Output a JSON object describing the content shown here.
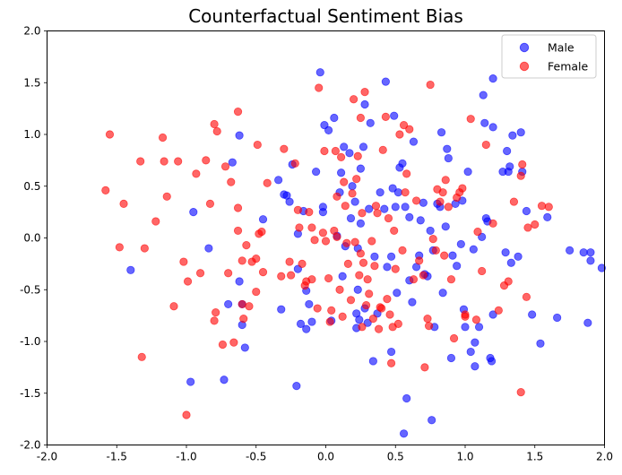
{
  "chart_data": {
    "type": "scatter",
    "title": "Counterfactual Sentiment Bias",
    "xlabel": "",
    "ylabel": "",
    "xlim": [
      -2.0,
      2.0
    ],
    "ylim": [
      -2.0,
      2.0
    ],
    "xticks": [
      "-2.0",
      "-1.5",
      "-1.0",
      "-0.5",
      "0.0",
      "0.5",
      "1.0",
      "1.5",
      "2.0"
    ],
    "yticks": [
      "-2.0",
      "-1.5",
      "-1.0",
      "-0.5",
      "0.0",
      "0.5",
      "1.0",
      "1.5",
      "2.0"
    ],
    "grid": false,
    "legend_position": "top-right",
    "series": [
      {
        "name": "Male",
        "color": "#0000ff",
        "alpha": 0.6,
        "points": [
          [
            -1.4,
            -0.31
          ],
          [
            -0.95,
            0.25
          ],
          [
            -0.97,
            -1.39
          ],
          [
            -0.84,
            -0.1
          ],
          [
            -0.73,
            -1.37
          ],
          [
            -0.7,
            -0.64
          ],
          [
            -0.67,
            0.73
          ],
          [
            -0.62,
            0.99
          ],
          [
            -0.62,
            -0.42
          ],
          [
            -0.6,
            -0.64
          ],
          [
            -0.6,
            -0.84
          ],
          [
            -0.58,
            -1.06
          ],
          [
            -0.45,
            0.18
          ],
          [
            -0.34,
            0.56
          ],
          [
            -0.32,
            -0.69
          ],
          [
            -0.3,
            0.42
          ],
          [
            -0.28,
            0.41
          ],
          [
            -0.26,
            0.35
          ],
          [
            -0.24,
            0.71
          ],
          [
            -0.21,
            -1.43
          ],
          [
            -0.2,
            -0.3
          ],
          [
            -0.2,
            0.04
          ],
          [
            -0.18,
            -0.83
          ],
          [
            -0.16,
            0.26
          ],
          [
            -0.14,
            -0.51
          ],
          [
            -0.14,
            -0.88
          ],
          [
            -0.12,
            -0.64
          ],
          [
            -0.1,
            -0.81
          ],
          [
            -0.07,
            0.64
          ],
          [
            -0.04,
            1.6
          ],
          [
            -0.02,
            0.3
          ],
          [
            -0.02,
            0.25
          ],
          [
            -0.01,
            1.09
          ],
          [
            0.02,
            1.04
          ],
          [
            0.04,
            -0.8
          ],
          [
            0.06,
            1.16
          ],
          [
            0.08,
            0.02
          ],
          [
            0.1,
            0.44
          ],
          [
            0.11,
            0.63
          ],
          [
            0.12,
            -0.37
          ],
          [
            0.13,
            0.88
          ],
          [
            0.14,
            -0.08
          ],
          [
            0.17,
            0.82
          ],
          [
            0.18,
            0.19
          ],
          [
            0.19,
            0.5
          ],
          [
            0.21,
            0.35
          ],
          [
            0.22,
            -0.73
          ],
          [
            0.22,
            -0.87
          ],
          [
            0.23,
            -0.5
          ],
          [
            0.23,
            -0.1
          ],
          [
            0.24,
            -0.79
          ],
          [
            0.25,
            0.67
          ],
          [
            0.25,
            0.14
          ],
          [
            0.27,
            0.88
          ],
          [
            0.28,
            -0.68
          ],
          [
            0.28,
            1.29
          ],
          [
            0.3,
            -0.82
          ],
          [
            0.31,
            0.28
          ],
          [
            0.32,
            1.11
          ],
          [
            0.34,
            -1.19
          ],
          [
            0.35,
            -0.18
          ],
          [
            0.37,
            -0.73
          ],
          [
            0.39,
            0.44
          ],
          [
            0.42,
            0.28
          ],
          [
            0.43,
            1.51
          ],
          [
            0.44,
            -0.28
          ],
          [
            0.47,
            -1.1
          ],
          [
            0.47,
            -0.18
          ],
          [
            0.48,
            0.48
          ],
          [
            0.49,
            1.18
          ],
          [
            0.5,
            0.3
          ],
          [
            0.51,
            -0.53
          ],
          [
            0.52,
            0.44
          ],
          [
            0.53,
            0.68
          ],
          [
            0.55,
            0.72
          ],
          [
            0.56,
            -1.89
          ],
          [
            0.57,
            0.3
          ],
          [
            0.58,
            -1.55
          ],
          [
            0.6,
            -0.41
          ],
          [
            0.6,
            0.2
          ],
          [
            0.62,
            -0.62
          ],
          [
            0.63,
            0.93
          ],
          [
            0.65,
            -0.28
          ],
          [
            0.67,
            -0.17
          ],
          [
            0.68,
            0.17
          ],
          [
            0.7,
            0.34
          ],
          [
            0.71,
            -0.35
          ],
          [
            0.73,
            -0.37
          ],
          [
            0.75,
            0.07
          ],
          [
            0.76,
            -1.76
          ],
          [
            0.77,
            -0.12
          ],
          [
            0.78,
            -0.86
          ],
          [
            0.8,
            0.33
          ],
          [
            0.82,
            0.3
          ],
          [
            0.83,
            1.02
          ],
          [
            0.84,
            -0.53
          ],
          [
            0.86,
            0.11
          ],
          [
            0.87,
            0.86
          ],
          [
            0.88,
            0.77
          ],
          [
            0.9,
            -1.16
          ],
          [
            0.91,
            -0.17
          ],
          [
            0.93,
            0.33
          ],
          [
            0.94,
            -0.27
          ],
          [
            0.97,
            -0.06
          ],
          [
            0.98,
            0.36
          ],
          [
            0.99,
            -0.69
          ],
          [
            1.0,
            -0.86
          ],
          [
            1.02,
            0.64
          ],
          [
            1.04,
            -1.1
          ],
          [
            1.06,
            -0.11
          ],
          [
            1.07,
            -1.24
          ],
          [
            1.07,
            -1.01
          ],
          [
            1.1,
            -0.86
          ],
          [
            1.12,
            0.01
          ],
          [
            1.13,
            1.38
          ],
          [
            1.14,
            1.11
          ],
          [
            1.15,
            0.19
          ],
          [
            1.16,
            0.16
          ],
          [
            1.18,
            -1.16
          ],
          [
            1.19,
            -1.19
          ],
          [
            1.2,
            -0.74
          ],
          [
            1.2,
            1.54
          ],
          [
            1.2,
            1.07
          ],
          [
            1.27,
            0.64
          ],
          [
            1.29,
            -0.14
          ],
          [
            1.3,
            0.84
          ],
          [
            1.31,
            0.64
          ],
          [
            1.32,
            0.69
          ],
          [
            1.33,
            -0.24
          ],
          [
            1.34,
            0.99
          ],
          [
            1.38,
            -0.18
          ],
          [
            1.4,
            1.02
          ],
          [
            1.41,
            0.64
          ],
          [
            1.44,
            0.26
          ],
          [
            1.48,
            -0.74
          ],
          [
            1.54,
            -1.02
          ],
          [
            1.59,
            0.2
          ],
          [
            1.66,
            -0.77
          ],
          [
            1.75,
            -0.12
          ],
          [
            1.85,
            -0.14
          ],
          [
            1.88,
            -0.82
          ],
          [
            1.9,
            -0.14
          ],
          [
            1.9,
            -0.22
          ],
          [
            1.98,
            -0.29
          ]
        ]
      },
      {
        "name": "Female",
        "color": "#ff0000",
        "alpha": 0.6,
        "points": [
          [
            -1.58,
            0.46
          ],
          [
            -1.55,
            1.0
          ],
          [
            -1.48,
            -0.09
          ],
          [
            -1.45,
            0.33
          ],
          [
            -1.33,
            0.74
          ],
          [
            -1.32,
            -1.15
          ],
          [
            -1.3,
            -0.1
          ],
          [
            -1.22,
            0.16
          ],
          [
            -1.17,
            0.97
          ],
          [
            -1.16,
            0.74
          ],
          [
            -1.14,
            0.4
          ],
          [
            -1.09,
            -0.66
          ],
          [
            -1.06,
            0.74
          ],
          [
            -1.02,
            -0.23
          ],
          [
            -0.99,
            -0.42
          ],
          [
            -1.0,
            -1.71
          ],
          [
            -0.93,
            0.62
          ],
          [
            -0.9,
            -0.34
          ],
          [
            -0.86,
            0.75
          ],
          [
            -0.83,
            0.33
          ],
          [
            -0.8,
            1.1
          ],
          [
            -0.8,
            -0.8
          ],
          [
            -0.79,
            -0.72
          ],
          [
            -0.78,
            1.03
          ],
          [
            -0.74,
            -1.03
          ],
          [
            -0.72,
            0.69
          ],
          [
            -0.7,
            -0.34
          ],
          [
            -0.68,
            0.54
          ],
          [
            -0.66,
            -1.01
          ],
          [
            -0.63,
            1.22
          ],
          [
            -0.63,
            0.07
          ],
          [
            -0.63,
            0.29
          ],
          [
            -0.6,
            -0.22
          ],
          [
            -0.6,
            -0.64
          ],
          [
            -0.59,
            -0.78
          ],
          [
            -0.57,
            -0.07
          ],
          [
            -0.55,
            -0.66
          ],
          [
            -0.53,
            -0.23
          ],
          [
            -0.5,
            -0.52
          ],
          [
            -0.5,
            -0.2
          ],
          [
            -0.49,
            0.9
          ],
          [
            -0.48,
            0.04
          ],
          [
            -0.46,
            0.06
          ],
          [
            -0.45,
            -0.33
          ],
          [
            -0.42,
            0.53
          ],
          [
            -0.32,
            -0.37
          ],
          [
            -0.3,
            0.86
          ],
          [
            -0.26,
            -0.23
          ],
          [
            -0.25,
            -0.36
          ],
          [
            -0.22,
            0.72
          ],
          [
            -0.2,
            0.27
          ],
          [
            -0.19,
            0.1
          ],
          [
            -0.17,
            -0.25
          ],
          [
            -0.15,
            -0.46
          ],
          [
            -0.14,
            -0.42
          ],
          [
            -0.12,
            0.25
          ],
          [
            -0.1,
            0.1
          ],
          [
            -0.1,
            -0.4
          ],
          [
            -0.08,
            -0.02
          ],
          [
            -0.06,
            -0.68
          ],
          [
            -0.05,
            1.45
          ],
          [
            -0.02,
            0.05
          ],
          [
            -0.01,
            0.84
          ],
          [
            0.0,
            -0.03
          ],
          [
            0.02,
            -0.39
          ],
          [
            0.03,
            -0.81
          ],
          [
            0.04,
            -0.7
          ],
          [
            0.06,
            0.07
          ],
          [
            0.07,
            0.84
          ],
          [
            0.08,
            0.01
          ],
          [
            0.08,
            0.4
          ],
          [
            0.1,
            -0.5
          ],
          [
            0.11,
            0.78
          ],
          [
            0.12,
            -0.76
          ],
          [
            0.13,
            0.54
          ],
          [
            0.14,
            0.31
          ],
          [
            0.15,
            -0.05
          ],
          [
            0.16,
            -0.25
          ],
          [
            0.18,
            -0.6
          ],
          [
            0.19,
            0.43
          ],
          [
            0.2,
            1.34
          ],
          [
            0.21,
            -0.04
          ],
          [
            0.22,
            0.57
          ],
          [
            0.23,
            0.79
          ],
          [
            0.24,
            -0.36
          ],
          [
            0.25,
            1.16
          ],
          [
            0.25,
            -0.15
          ],
          [
            0.26,
            0.24
          ],
          [
            0.26,
            -0.86
          ],
          [
            0.27,
            -0.24
          ],
          [
            0.28,
            1.41
          ],
          [
            0.29,
            -0.65
          ],
          [
            0.3,
            -0.4
          ],
          [
            0.31,
            -0.54
          ],
          [
            0.33,
            -0.03
          ],
          [
            0.34,
            -0.78
          ],
          [
            0.35,
            -0.27
          ],
          [
            0.36,
            0.31
          ],
          [
            0.37,
            0.24
          ],
          [
            0.38,
            -0.88
          ],
          [
            0.39,
            -0.67
          ],
          [
            0.4,
            -0.68
          ],
          [
            0.41,
            0.85
          ],
          [
            0.43,
            1.17
          ],
          [
            0.44,
            -0.59
          ],
          [
            0.45,
            0.19
          ],
          [
            0.46,
            -0.74
          ],
          [
            0.47,
            -1.21
          ],
          [
            0.48,
            -0.86
          ],
          [
            0.49,
            0.07
          ],
          [
            0.5,
            -0.3
          ],
          [
            0.52,
            -0.83
          ],
          [
            0.53,
            1.0
          ],
          [
            0.55,
            -0.12
          ],
          [
            0.56,
            1.09
          ],
          [
            0.57,
            0.44
          ],
          [
            0.58,
            0.62
          ],
          [
            0.6,
            1.05
          ],
          [
            0.63,
            -0.4
          ],
          [
            0.65,
            0.36
          ],
          [
            0.67,
            -0.22
          ],
          [
            0.7,
            -0.36
          ],
          [
            0.71,
            -1.25
          ],
          [
            0.73,
            -0.78
          ],
          [
            0.74,
            -0.85
          ],
          [
            0.75,
            1.48
          ],
          [
            0.77,
            -0.01
          ],
          [
            0.79,
            -0.12
          ],
          [
            0.8,
            0.47
          ],
          [
            0.82,
            0.35
          ],
          [
            0.84,
            0.44
          ],
          [
            0.85,
            -0.17
          ],
          [
            0.86,
            0.56
          ],
          [
            0.88,
            0.3
          ],
          [
            0.9,
            -0.4
          ],
          [
            0.92,
            -0.97
          ],
          [
            0.94,
            0.39
          ],
          [
            0.96,
            0.44
          ],
          [
            0.98,
            0.48
          ],
          [
            1.0,
            -0.76
          ],
          [
            1.04,
            1.15
          ],
          [
            1.08,
            -0.79
          ],
          [
            1.09,
            0.06
          ],
          [
            1.12,
            -0.32
          ],
          [
            1.15,
            0.9
          ],
          [
            1.2,
            0.14
          ],
          [
            1.24,
            -0.7
          ],
          [
            1.28,
            -0.46
          ],
          [
            1.31,
            -0.42
          ],
          [
            1.35,
            0.35
          ],
          [
            1.4,
            0.6
          ],
          [
            1.41,
            0.71
          ],
          [
            1.44,
            -0.57
          ],
          [
            1.45,
            0.1
          ],
          [
            1.5,
            0.13
          ],
          [
            1.55,
            0.31
          ],
          [
            1.6,
            0.3
          ],
          [
            1.4,
            -1.49
          ],
          [
            1.0,
            -0.74
          ]
        ]
      }
    ]
  }
}
